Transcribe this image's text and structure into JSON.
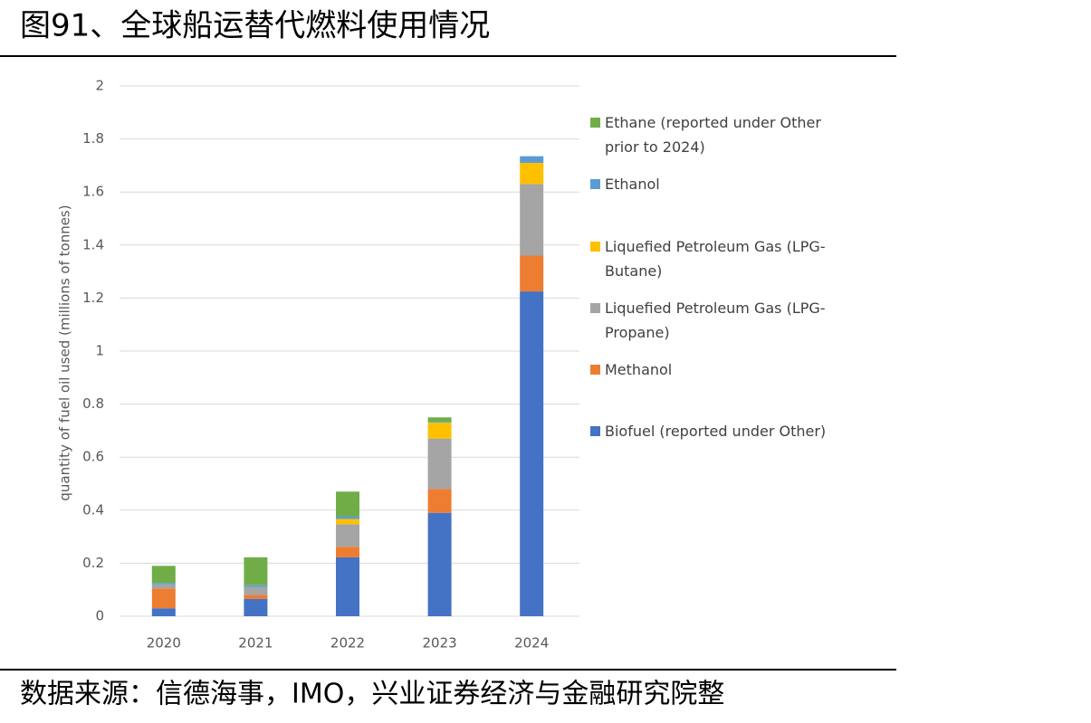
{
  "header": {
    "title": "图91、全球船运替代燃料使用情况"
  },
  "chart_data": {
    "type": "stacked_bar",
    "y_label": "quantity of fuel oil used (millions of tonnes)",
    "categories": [
      "2020",
      "2021",
      "2022",
      "2023",
      "2024"
    ],
    "series": [
      {
        "name": "Biofuel (reported under Other)",
        "color": "#4472c4",
        "values": [
          0.03,
          0.065,
          0.222,
          0.39,
          1.225
        ]
      },
      {
        "name": "Methanol",
        "color": "#ed7d31",
        "values": [
          0.075,
          0.015,
          0.04,
          0.09,
          0.135
        ]
      },
      {
        "name": "Liquefied Petroleum Gas (LPG-Propane)",
        "color": "#a5a5a5",
        "values": [
          0.015,
          0.03,
          0.085,
          0.19,
          0.27
        ]
      },
      {
        "name": "Liquefied Petroleum Gas (LPG-Butane)",
        "color": "#ffc000",
        "values": [
          0,
          0,
          0.02,
          0.06,
          0.08
        ]
      },
      {
        "name": "Ethanol",
        "color": "#5b9bd5",
        "values": [
          0.005,
          0.007,
          0.01,
          0.003,
          0.025
        ]
      },
      {
        "name": "Ethane (reported under Other prior to 2024)",
        "color": "#70ad47",
        "values": [
          0.065,
          0.105,
          0.093,
          0.017,
          0
        ]
      }
    ],
    "ylim": [
      0,
      2
    ],
    "yticks": [
      0,
      0.2,
      0.4,
      0.6,
      0.8,
      1,
      1.2,
      1.4,
      1.6,
      1.8,
      2
    ],
    "grid": true,
    "legend": "right"
  },
  "footer": {
    "source": "数据来源：信德海事，IMO，兴业证券经济与金融研究院整"
  }
}
